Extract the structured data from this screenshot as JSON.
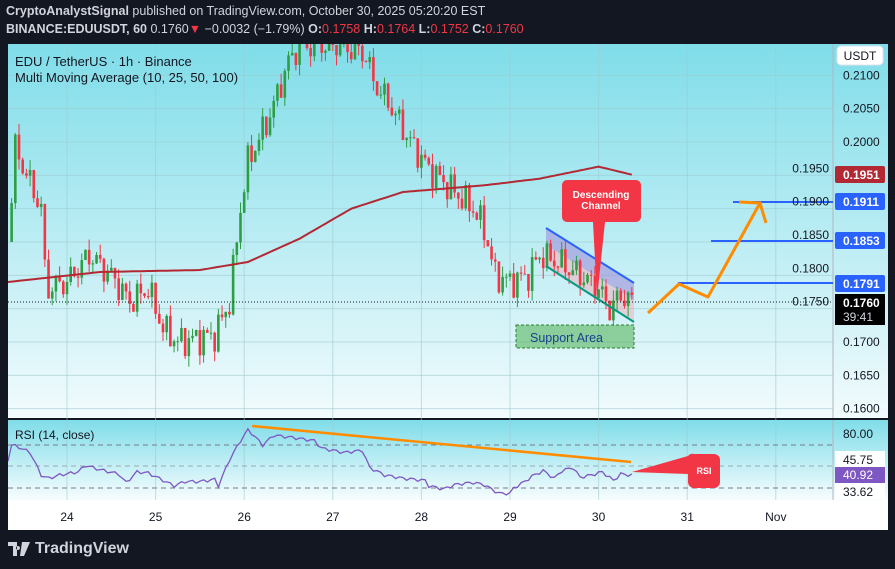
{
  "header": {
    "author": "CryptoAnalystSignal",
    "published": "published on TradingView.com, October 30, 2025 05:20:20 EST",
    "symbol": "BINANCE:EDUUSDT, 60",
    "last": "0.1760",
    "change": "−0.0032 (−1.79%)",
    "o_label": "O:",
    "o": "0.1758",
    "h_label": "H:",
    "h": "0.1764",
    "l_label": "L:",
    "l": "0.1752",
    "c_label": "C:",
    "c": "0.1760"
  },
  "legend": {
    "title": "EDU / TetherUS · 1h · Binance",
    "indicator": "Multi Moving Average (10, 25, 50, 100)",
    "rsi": "RSI (14, close)"
  },
  "currency_button": "USDT",
  "brand": "TradingView",
  "colors": {
    "up": "#2e9e45",
    "down": "#f23645",
    "ma": "#b22833",
    "level": "#2962ff",
    "arrow": "#ff8c00",
    "rsi": "#7e57c2"
  },
  "chart_data": [
    {
      "type": "candlestick",
      "title": "EDU / TetherUS · 1h · Binance",
      "ylim": [
        0.159,
        0.215
      ],
      "y_ticks": [
        "0.1600",
        "0.1650",
        "0.1700",
        "0.1750",
        "0.1800",
        "0.1850",
        "0.1900",
        "0.1950",
        "0.2000",
        "0.2050",
        "0.2100"
      ],
      "x_ticks": [
        "24",
        "25",
        "26",
        "27",
        "28",
        "29",
        "30",
        "31",
        "Nov"
      ],
      "approx_close": [
        [
          "10-23 08:00",
          0.185
        ],
        [
          "10-23 10:00",
          0.199
        ],
        [
          "10-23 17:00",
          0.19
        ],
        [
          "10-23 18:00",
          0.181
        ],
        [
          "10-23 19:00",
          0.178
        ],
        [
          "10-24 00:00",
          0.179
        ],
        [
          "10-24 06:00",
          0.183
        ],
        [
          "10-24 12:00",
          0.18
        ],
        [
          "10-24 17:00",
          0.176
        ],
        [
          "10-24 22:00",
          0.178
        ],
        [
          "10-25 02:00",
          0.172
        ],
        [
          "10-25 06:00",
          0.17
        ],
        [
          "10-25 16:00",
          0.171
        ],
        [
          "10-25 20:00",
          0.176
        ],
        [
          "10-25 23:00",
          0.19
        ],
        [
          "10-26 01:00",
          0.197
        ],
        [
          "10-26 07:00",
          0.204
        ],
        [
          "10-26 12:00",
          0.212
        ],
        [
          "10-26 15:00",
          0.2145
        ],
        [
          "10-27 02:00",
          0.2145
        ],
        [
          "10-27 09:00",
          0.213
        ],
        [
          "10-27 11:00",
          0.209
        ],
        [
          "10-27 15:00",
          0.206
        ],
        [
          "10-27 21:00",
          0.2
        ],
        [
          "10-28 02:00",
          0.196
        ],
        [
          "10-28 08:00",
          0.193
        ],
        [
          "10-28 14:00",
          0.19
        ],
        [
          "10-28 17:00",
          0.187
        ],
        [
          "10-28 20:00",
          0.18
        ],
        [
          "10-29 00:00",
          0.179
        ],
        [
          "10-29 05:00",
          0.18
        ],
        [
          "10-29 08:00",
          0.183
        ],
        [
          "10-29 13:00",
          0.182
        ],
        [
          "10-29 19:00",
          0.18
        ],
        [
          "10-30 00:00",
          0.178
        ],
        [
          "10-30 03:00",
          0.175
        ],
        [
          "10-30 06:00",
          0.177
        ],
        [
          "10-30 09:00",
          0.176
        ]
      ],
      "moving_average": {
        "value": "0.1951",
        "approx": [
          [
            "10-23 08:00",
            0.179
          ],
          [
            "10-24 09:00",
            0.1805
          ],
          [
            "10-25 12:00",
            0.1808
          ],
          [
            "10-26 01:00",
            0.182
          ],
          [
            "10-26 15:00",
            0.1855
          ],
          [
            "10-27 05:00",
            0.19
          ],
          [
            "10-27 19:00",
            0.1925
          ],
          [
            "10-28 17:00",
            0.1935
          ],
          [
            "10-29 08:00",
            0.1945
          ],
          [
            "10-30 00:00",
            0.1963
          ],
          [
            "10-30 09:00",
            0.1951
          ]
        ]
      },
      "current_price": "0.1760",
      "countdown": "39:41",
      "levels": [
        "0.1911",
        "0.1853",
        "0.1791"
      ],
      "annotations": {
        "channel_label": "Descending Channel",
        "support_label": "Support Area"
      }
    },
    {
      "type": "line",
      "title": "RSI (14, close)",
      "ylim": [
        15,
        95
      ],
      "bands": [
        70,
        50,
        30
      ],
      "y_labels": [
        "80.00",
        "45.75",
        "40.92",
        "33.62"
      ],
      "rsi_callout": "RSI",
      "approx_values": [
        [
          "10-23 08:00",
          56
        ],
        [
          "10-23 09:00",
          70
        ],
        [
          "10-23 11:00",
          68
        ],
        [
          "10-23 14:00",
          63
        ],
        [
          "10-23 17:00",
          42
        ],
        [
          "10-23 19:00",
          39
        ],
        [
          "10-23 22:00",
          42
        ],
        [
          "10-24 03:00",
          45
        ],
        [
          "10-24 05:00",
          51
        ],
        [
          "10-24 09:00",
          47
        ],
        [
          "10-24 14:00",
          43
        ],
        [
          "10-24 16:00",
          35
        ],
        [
          "10-24 19:00",
          45
        ],
        [
          "10-24 22:00",
          44
        ],
        [
          "10-25 05:00",
          32
        ],
        [
          "10-25 08:00",
          36
        ],
        [
          "10-25 12:00",
          36
        ],
        [
          "10-25 16:00",
          38
        ],
        [
          "10-25 17:00",
          32
        ],
        [
          "10-25 20:00",
          56
        ],
        [
          "10-25 23:00",
          74
        ],
        [
          "10-26 01:00",
          84
        ],
        [
          "10-26 02:00",
          81
        ],
        [
          "10-26 05:00",
          70
        ],
        [
          "10-26 08:00",
          79
        ],
        [
          "10-26 13:00",
          77
        ],
        [
          "10-26 19:00",
          74
        ],
        [
          "10-26 21:00",
          67
        ],
        [
          "10-27 03:00",
          63
        ],
        [
          "10-27 08:00",
          65
        ],
        [
          "10-27 10:00",
          49
        ],
        [
          "10-27 14:00",
          42
        ],
        [
          "10-27 19:00",
          39
        ],
        [
          "10-28 01:00",
          37
        ],
        [
          "10-28 02:00",
          32
        ],
        [
          "10-28 06:00",
          29
        ],
        [
          "10-28 09:00",
          33
        ],
        [
          "10-28 11:00",
          34
        ],
        [
          "10-28 14:00",
          35
        ],
        [
          "10-28 17:00",
          33
        ],
        [
          "10-28 21:00",
          25
        ],
        [
          "10-29 00:00",
          25
        ],
        [
          "10-29 01:00",
          30
        ],
        [
          "10-29 04:00",
          36
        ],
        [
          "10-29 06:00",
          41
        ],
        [
          "10-29 09:00",
          46
        ],
        [
          "10-29 12:00",
          39
        ],
        [
          "10-29 14:00",
          46
        ],
        [
          "10-29 17:00",
          49
        ],
        [
          "10-29 19:00",
          40
        ],
        [
          "10-29 22:00",
          42
        ],
        [
          "10-30 01:00",
          45
        ],
        [
          "10-30 04:00",
          37
        ],
        [
          "10-30 06:00",
          43
        ],
        [
          "10-30 09:00",
          42
        ]
      ]
    }
  ]
}
